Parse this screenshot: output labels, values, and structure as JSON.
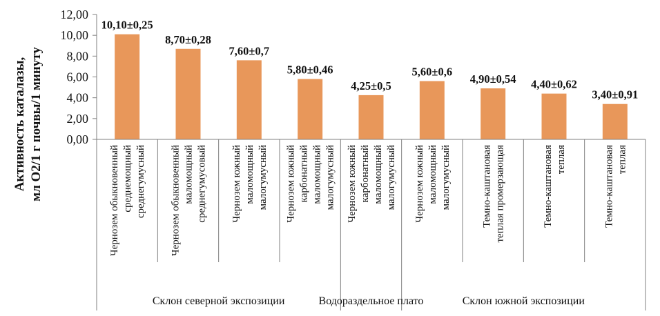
{
  "chart_data": {
    "type": "bar",
    "ylabel": [
      "Активность каталазы,",
      "мл О2/1 г почвы/1 минуту"
    ],
    "ylim": [
      0,
      12
    ],
    "yticks": [
      "0,00",
      "2,00",
      "4,00",
      "6,00",
      "8,00",
      "10,00",
      "12,00"
    ],
    "grid": false,
    "bar_color": "#E8975A",
    "axis_color": "#7f7f7f",
    "categories": [
      [
        "Чернозем обыкновенный",
        "среднемощный",
        "среднегумусный"
      ],
      [
        "Чернозем обыкновенный",
        "маломощный",
        "среднегумусовый"
      ],
      [
        "Чернозем южный",
        "маломощный",
        "малогумусный"
      ],
      [
        "Чернозем южный",
        "карбонатный",
        "маломощный",
        "малогумусный"
      ],
      [
        "Чернозем южный",
        "карбонатный",
        "маломощный",
        "малогумусный"
      ],
      [
        "Чернозем южный",
        "маломощный",
        "малогумусный"
      ],
      [
        "Темно-каштановая",
        "теплая промерзающая"
      ],
      [
        "Темно-каштановая",
        "теплая"
      ],
      [
        "Темно-каштановая",
        "теплая"
      ]
    ],
    "values": [
      10.1,
      8.7,
      7.6,
      5.8,
      4.25,
      5.6,
      4.9,
      4.4,
      3.4
    ],
    "value_labels": [
      "10,10±0,25",
      "8,70±0,28",
      "7,60±0,7",
      "5,80±0,46",
      "4,25±0,5",
      "5,60±0,6",
      "4,90±0,54",
      "4,40±0,62",
      "3,40±0,91"
    ],
    "groups": [
      {
        "label": "Склон северной экспозиции",
        "first": 0,
        "last": 3
      },
      {
        "label": "Водораздельное плато",
        "first": 4,
        "last": 4
      },
      {
        "label": "Склон южной экспозиции",
        "first": 5,
        "last": 8
      }
    ]
  }
}
